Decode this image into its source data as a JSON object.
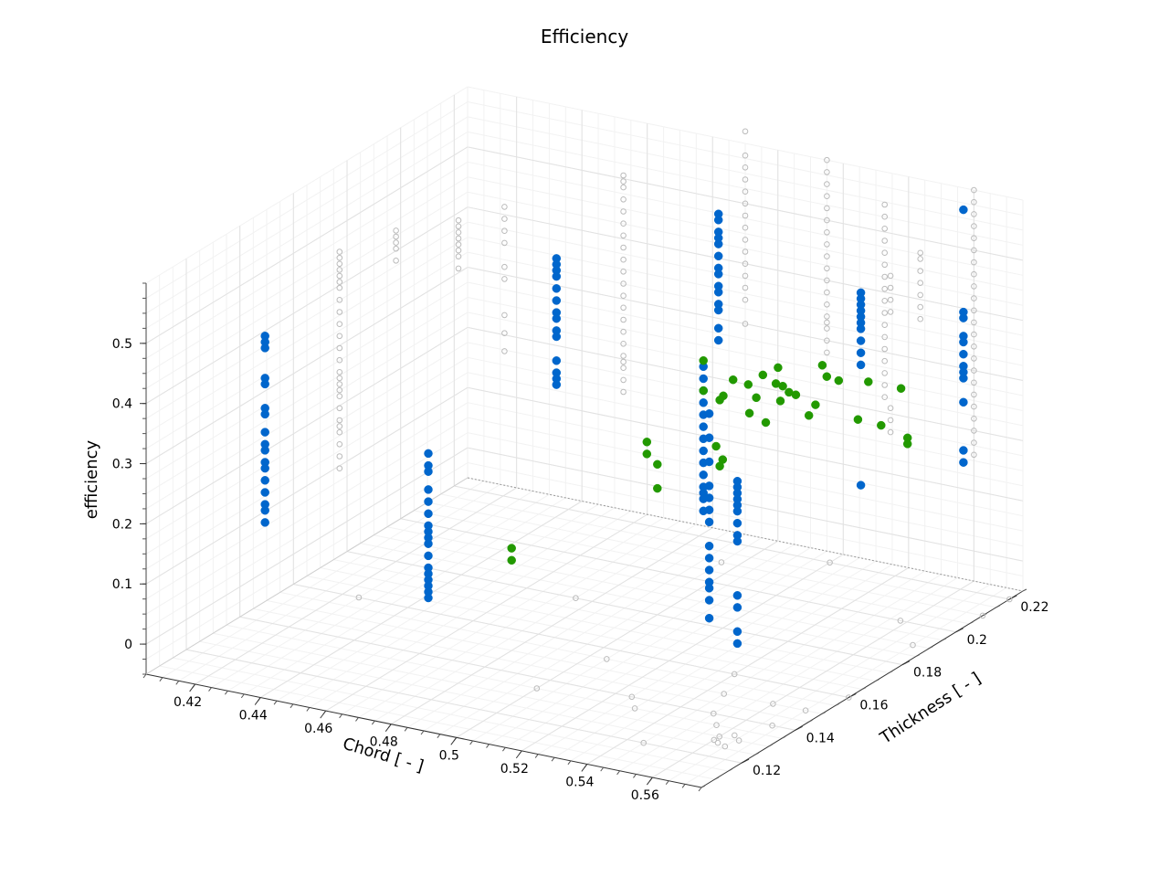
{
  "chart_data": {
    "type": "scatter",
    "title": "Efficiency",
    "xlabel": "Chord [ - ]",
    "ylabel": "Thickness [ - ]",
    "zlabel": "efficiency",
    "xlim": [
      0.405,
      0.575
    ],
    "ylim": [
      0.105,
      0.225
    ],
    "zlim": [
      -0.05,
      0.6
    ],
    "x_ticks": [
      "0.42",
      "0.44",
      "0.46",
      "0.48",
      "0.5",
      "0.52",
      "0.54",
      "0.56"
    ],
    "y_ticks": [
      "0.12",
      "0.14",
      "0.16",
      "0.18",
      "0.2",
      "0.22"
    ],
    "z_ticks": [
      "0",
      "0.1",
      "0.2",
      "0.3",
      "0.4",
      "0.5"
    ],
    "grid": true,
    "view": "3d",
    "series": [
      {
        "color": "#0066cc",
        "marker": "filled-circle",
        "columns": [
          {
            "x": 0.425,
            "y": 0.125,
            "z": [
              0.48,
              0.47,
              0.46,
              0.41,
              0.4,
              0.36,
              0.35,
              0.32,
              0.3,
              0.29,
              0.27,
              0.26,
              0.24,
              0.22,
              0.2,
              0.19,
              0.17
            ]
          },
          {
            "x": 0.465,
            "y": 0.185,
            "z": [
              0.49,
              0.48,
              0.47,
              0.46,
              0.44,
              0.42,
              0.4,
              0.39,
              0.37,
              0.36,
              0.32,
              0.3,
              0.29,
              0.28
            ]
          },
          {
            "x": 0.475,
            "y": 0.125,
            "z": [
              0.34,
              0.32,
              0.31,
              0.28,
              0.26,
              0.24,
              0.22,
              0.21,
              0.2,
              0.19,
              0.17,
              0.15,
              0.14,
              0.13,
              0.12,
              0.11,
              0.1
            ]
          },
          {
            "x": 0.49,
            "y": 0.215,
            "z": [
              0.51,
              0.5,
              0.48,
              0.47,
              0.46,
              0.44,
              0.42,
              0.41,
              0.39,
              0.38,
              0.36,
              0.35,
              0.32,
              0.3
            ]
          },
          {
            "x": 0.51,
            "y": 0.185,
            "z": [
              0.36,
              0.34,
              0.32,
              0.3,
              0.28,
              0.26,
              0.24,
              0.22,
              0.2,
              0.18,
              0.16,
              0.15,
              0.14,
              0.12
            ]
          },
          {
            "x": 0.52,
            "y": 0.175,
            "z": [
              0.32,
              0.28,
              0.24,
              0.2,
              0.18,
              0.16,
              0.14,
              0.1,
              0.08,
              0.06,
              0.04,
              0.03,
              0.01,
              -0.02
            ]
          },
          {
            "x": 0.55,
            "y": 0.195,
            "z": [
              0.5,
              0.49,
              0.48,
              0.47,
              0.46,
              0.45,
              0.44,
              0.42,
              0.4,
              0.38,
              0.18
            ]
          },
          {
            "x": 0.545,
            "y": 0.155,
            "z": [
              0.29,
              0.28,
              0.27,
              0.26,
              0.25,
              0.24,
              0.22,
              0.2,
              0.19,
              0.1,
              0.08,
              0.04,
              0.02
            ]
          },
          {
            "x": 0.565,
            "y": 0.215,
            "z": [
              0.6,
              0.43,
              0.42,
              0.39,
              0.38,
              0.36,
              0.34,
              0.33,
              0.32,
              0.28,
              0.2,
              0.18
            ]
          }
        ]
      },
      {
        "color": "#229900",
        "marker": "filled-circle",
        "cluster_center": {
          "x": 0.515,
          "y": 0.19,
          "z": 0.29
        },
        "points": [
          {
            "x": 0.505,
            "y": 0.17,
            "z": 0.27
          },
          {
            "x": 0.505,
            "y": 0.17,
            "z": 0.25
          },
          {
            "x": 0.51,
            "y": 0.185,
            "z": 0.37
          },
          {
            "x": 0.51,
            "y": 0.185,
            "z": 0.32
          },
          {
            "x": 0.512,
            "y": 0.19,
            "z": 0.3
          },
          {
            "x": 0.515,
            "y": 0.19,
            "z": 0.33
          },
          {
            "x": 0.515,
            "y": 0.185,
            "z": 0.31
          },
          {
            "x": 0.518,
            "y": 0.195,
            "z": 0.29
          },
          {
            "x": 0.52,
            "y": 0.19,
            "z": 0.28
          },
          {
            "x": 0.52,
            "y": 0.195,
            "z": 0.33
          },
          {
            "x": 0.522,
            "y": 0.2,
            "z": 0.3
          },
          {
            "x": 0.524,
            "y": 0.195,
            "z": 0.32
          },
          {
            "x": 0.525,
            "y": 0.19,
            "z": 0.27
          },
          {
            "x": 0.526,
            "y": 0.2,
            "z": 0.29
          },
          {
            "x": 0.528,
            "y": 0.195,
            "z": 0.31
          },
          {
            "x": 0.53,
            "y": 0.2,
            "z": 0.26
          },
          {
            "x": 0.53,
            "y": 0.205,
            "z": 0.33
          },
          {
            "x": 0.532,
            "y": 0.2,
            "z": 0.28
          },
          {
            "x": 0.535,
            "y": 0.205,
            "z": 0.31
          },
          {
            "x": 0.52,
            "y": 0.18,
            "z": 0.23
          },
          {
            "x": 0.518,
            "y": 0.18,
            "z": 0.25
          },
          {
            "x": 0.54,
            "y": 0.21,
            "z": 0.3
          },
          {
            "x": 0.545,
            "y": 0.2,
            "z": 0.27
          },
          {
            "x": 0.548,
            "y": 0.205,
            "z": 0.25
          },
          {
            "x": 0.55,
            "y": 0.21,
            "z": 0.3
          },
          {
            "x": 0.552,
            "y": 0.21,
            "z": 0.21
          },
          {
            "x": 0.552,
            "y": 0.21,
            "z": 0.22
          },
          {
            "x": 0.515,
            "y": 0.185,
            "z": 0.2
          },
          {
            "x": 0.5,
            "y": 0.18,
            "z": 0.16
          },
          {
            "x": 0.5,
            "y": 0.18,
            "z": 0.2
          },
          {
            "x": 0.48,
            "y": 0.15,
            "z": 0.12
          },
          {
            "x": 0.48,
            "y": 0.15,
            "z": 0.1
          },
          {
            "x": 0.518,
            "y": 0.192,
            "z": 0.32
          },
          {
            "x": 0.523,
            "y": 0.197,
            "z": 0.34
          },
          {
            "x": 0.527,
            "y": 0.193,
            "z": 0.3
          },
          {
            "x": 0.533,
            "y": 0.203,
            "z": 0.32
          }
        ]
      },
      {
        "color": "#bbbbbb",
        "marker": "open-circle",
        "columns": [
          {
            "x": 0.415,
            "y": 0.165,
            "z": [
              0.5,
              0.49,
              0.48,
              0.47,
              0.46,
              0.45,
              0.44,
              0.42,
              0.4,
              0.38,
              0.36,
              0.34,
              0.32,
              0.3,
              0.29,
              0.28,
              0.27,
              0.26,
              0.24,
              0.22,
              0.21,
              0.2,
              0.18,
              0.16,
              0.14
            ]
          },
          {
            "x": 0.42,
            "y": 0.18,
            "z": [
              0.5,
              0.49,
              0.48,
              0.47,
              0.45
            ]
          },
          {
            "x": 0.435,
            "y": 0.185,
            "z": [
              0.52,
              0.51,
              0.5,
              0.49,
              0.48,
              0.47,
              0.46,
              0.44
            ]
          },
          {
            "x": 0.445,
            "y": 0.19,
            "z": [
              0.54,
              0.52,
              0.5,
              0.48,
              0.44,
              0.42,
              0.36,
              0.33,
              0.3
            ]
          },
          {
            "x": 0.465,
            "y": 0.21,
            "z": [
              0.56,
              0.55,
              0.54,
              0.52,
              0.5,
              0.48,
              0.46,
              0.44,
              0.42,
              0.4,
              0.38,
              0.36,
              0.34,
              0.32,
              0.3,
              0.28,
              0.26,
              0.25,
              0.24,
              0.22,
              0.2
            ]
          },
          {
            "x": 0.49,
            "y": 0.225,
            "z": [
              0.62,
              0.58,
              0.56,
              0.54,
              0.52,
              0.5,
              0.48,
              0.46,
              0.44,
              0.42,
              0.4,
              0.38,
              0.36,
              0.34,
              0.3
            ]
          },
          {
            "x": 0.515,
            "y": 0.225,
            "z": [
              0.6,
              0.58,
              0.56,
              0.54,
              0.52,
              0.5,
              0.48,
              0.46,
              0.44,
              0.42,
              0.4,
              0.38,
              0.36,
              0.34,
              0.33,
              0.32,
              0.3,
              0.28
            ]
          },
          {
            "x": 0.545,
            "y": 0.21,
            "z": [
              0.6,
              0.58,
              0.56,
              0.54,
              0.52,
              0.5,
              0.48,
              0.46,
              0.44,
              0.42,
              0.4,
              0.38,
              0.36,
              0.34,
              0.32,
              0.3,
              0.28
            ]
          },
          {
            "x": 0.56,
            "y": 0.225,
            "z": [
              0.6,
              0.58,
              0.56,
              0.54,
              0.52,
              0.5,
              0.48,
              0.46,
              0.44,
              0.42,
              0.4,
              0.38,
              0.36,
              0.34,
              0.32,
              0.3,
              0.28,
              0.26,
              0.24,
              0.22,
              0.2,
              0.18,
              0.16
            ]
          },
          {
            "x": 0.56,
            "y": 0.205,
            "z": [
              0.55,
              0.54,
              0.52,
              0.5,
              0.48,
              0.46,
              0.44
            ]
          },
          {
            "x": 0.555,
            "y": 0.2,
            "z": [
              0.52,
              0.5,
              0.48,
              0.46,
              0.3,
              0.28,
              0.26
            ]
          }
        ],
        "floor_points": [
          {
            "x": 0.425,
            "y": 0.16
          },
          {
            "x": 0.475,
            "y": 0.18
          },
          {
            "x": 0.495,
            "y": 0.21
          },
          {
            "x": 0.52,
            "y": 0.22
          },
          {
            "x": 0.505,
            "y": 0.155
          },
          {
            "x": 0.5,
            "y": 0.135
          },
          {
            "x": 0.525,
            "y": 0.14
          },
          {
            "x": 0.53,
            "y": 0.135
          },
          {
            "x": 0.545,
            "y": 0.12
          },
          {
            "x": 0.55,
            "y": 0.14
          },
          {
            "x": 0.555,
            "y": 0.135
          },
          {
            "x": 0.56,
            "y": 0.13
          },
          {
            "x": 0.56,
            "y": 0.128
          },
          {
            "x": 0.562,
            "y": 0.127
          },
          {
            "x": 0.565,
            "y": 0.126
          },
          {
            "x": 0.566,
            "y": 0.13
          },
          {
            "x": 0.563,
            "y": 0.132
          },
          {
            "x": 0.568,
            "y": 0.14
          },
          {
            "x": 0.57,
            "y": 0.15
          },
          {
            "x": 0.575,
            "y": 0.16
          },
          {
            "x": 0.56,
            "y": 0.15
          },
          {
            "x": 0.545,
            "y": 0.15
          },
          {
            "x": 0.54,
            "y": 0.16
          },
          {
            "x": 0.558,
            "y": 0.2
          },
          {
            "x": 0.57,
            "y": 0.19
          },
          {
            "x": 0.575,
            "y": 0.21
          },
          {
            "x": 0.575,
            "y": 0.22
          }
        ]
      }
    ]
  }
}
